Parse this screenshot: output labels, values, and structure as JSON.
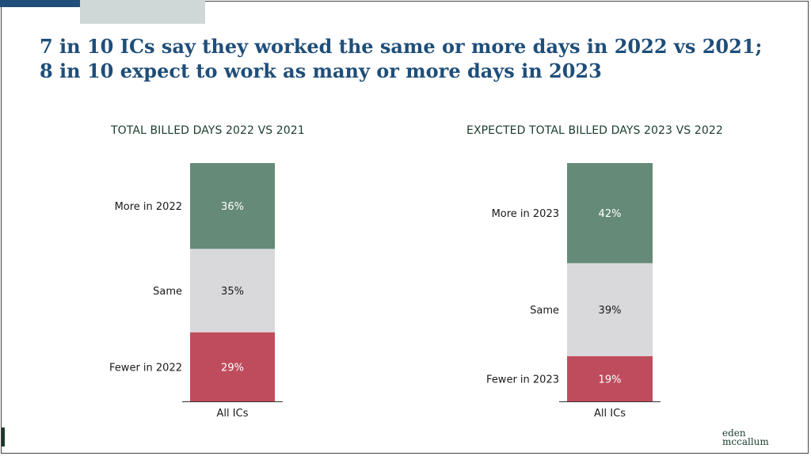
{
  "headline": {
    "line1": "7 in 10 ICs say they worked the same or more days in 2022 vs 2021;",
    "line2": "8 in 10 expect to work as many or more days in 2023"
  },
  "colors": {
    "more": "#668a78",
    "same": "#d9d9db",
    "fewer": "#bf4c5c",
    "title": "#1f4e79"
  },
  "logo": {
    "line1": "eden",
    "line2": "mccallum"
  },
  "chart_data": [
    {
      "type": "bar",
      "stacked": true,
      "title": "TOTAL BILLED DAYS 2022 VS 2021",
      "categories": [
        "All ICs"
      ],
      "series": [
        {
          "name": "Fewer in 2022",
          "values": [
            29
          ],
          "label": "29%",
          "color": "#bf4c5c",
          "text_color": "#ffffff"
        },
        {
          "name": "Same",
          "values": [
            35
          ],
          "label": "35%",
          "color": "#d9d9db",
          "text_color": "#1a1a1a"
        },
        {
          "name": "More in 2022",
          "values": [
            36
          ],
          "label": "36%",
          "color": "#668a78",
          "text_color": "#ffffff"
        }
      ],
      "ylim": [
        0,
        100
      ],
      "grid": false
    },
    {
      "type": "bar",
      "stacked": true,
      "title": "EXPECTED TOTAL BILLED DAYS 2023 VS 2022",
      "categories": [
        "All ICs"
      ],
      "series": [
        {
          "name": "Fewer in 2023",
          "values": [
            19
          ],
          "label": "19%",
          "color": "#bf4c5c",
          "text_color": "#ffffff"
        },
        {
          "name": "Same",
          "values": [
            39
          ],
          "label": "39%",
          "color": "#d9d9db",
          "text_color": "#1a1a1a"
        },
        {
          "name": "More in 2023",
          "values": [
            42
          ],
          "label": "42%",
          "color": "#668a78",
          "text_color": "#ffffff"
        }
      ],
      "ylim": [
        0,
        100
      ],
      "grid": false
    }
  ]
}
